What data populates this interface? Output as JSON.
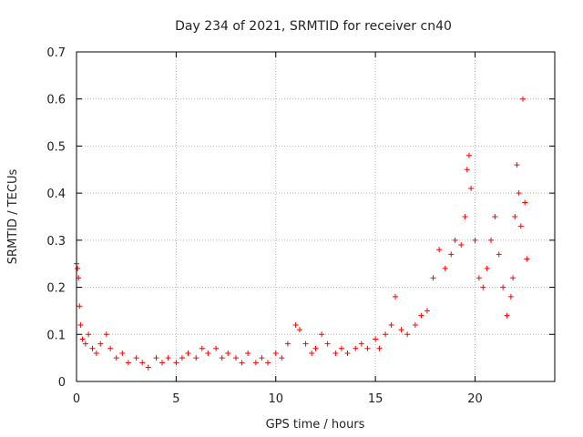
{
  "chart_data": {
    "type": "scatter",
    "title": "Day 234 of 2021, SRMTID for receiver cn40",
    "xlabel": "GPS time / hours",
    "ylabel": "SRMTID / TECUs",
    "xlim": [
      0,
      24
    ],
    "ylim": [
      0,
      0.7
    ],
    "x_ticks": [
      0,
      5,
      10,
      15,
      20
    ],
    "x_tick_labels": [
      "0",
      "5",
      "10",
      "15",
      "20"
    ],
    "y_ticks": [
      0,
      0.1,
      0.2,
      0.3,
      0.4,
      0.5,
      0.6,
      0.7
    ],
    "y_tick_labels": [
      "0",
      "0.1",
      "0.2",
      "0.3",
      "0.4",
      "0.5",
      "0.6",
      "0.7"
    ],
    "grid": true,
    "marker": "+",
    "color": "#ff0000",
    "series": [
      {
        "name": "SRMTID",
        "x": [
          0.0,
          0.05,
          0.1,
          0.15,
          0.2,
          0.3,
          0.45,
          0.6,
          0.8,
          1.0,
          1.2,
          1.5,
          1.7,
          2.0,
          2.3,
          2.6,
          3.0,
          3.3,
          3.6,
          4.0,
          4.3,
          4.6,
          5.0,
          5.3,
          5.6,
          6.0,
          6.3,
          6.6,
          7.0,
          7.3,
          7.6,
          8.0,
          8.3,
          8.6,
          9.0,
          9.3,
          9.6,
          10.0,
          10.3,
          10.6,
          11.0,
          11.2,
          11.5,
          11.8,
          12.0,
          12.3,
          12.6,
          13.0,
          13.3,
          13.6,
          14.0,
          14.3,
          14.6,
          15.0,
          15.2,
          15.5,
          15.8,
          16.0,
          16.3,
          16.6,
          17.0,
          17.3,
          17.6,
          17.9,
          18.2,
          18.5,
          18.8,
          19.0,
          19.3,
          19.5,
          19.6,
          19.7,
          19.8,
          20.0,
          20.2,
          20.4,
          20.6,
          20.8,
          21.0,
          21.2,
          21.4,
          21.6,
          21.8,
          21.9,
          22.0,
          22.1,
          22.2,
          22.3,
          22.4,
          22.5,
          22.6
        ],
        "y": [
          0.25,
          0.24,
          0.22,
          0.16,
          0.12,
          0.09,
          0.08,
          0.1,
          0.07,
          0.06,
          0.08,
          0.1,
          0.07,
          0.05,
          0.06,
          0.04,
          0.05,
          0.04,
          0.03,
          0.05,
          0.04,
          0.05,
          0.04,
          0.05,
          0.06,
          0.05,
          0.07,
          0.06,
          0.07,
          0.05,
          0.06,
          0.05,
          0.04,
          0.06,
          0.04,
          0.05,
          0.04,
          0.06,
          0.05,
          0.08,
          0.12,
          0.11,
          0.08,
          0.06,
          0.07,
          0.1,
          0.08,
          0.06,
          0.07,
          0.06,
          0.07,
          0.08,
          0.07,
          0.09,
          0.07,
          0.1,
          0.12,
          0.18,
          0.11,
          0.1,
          0.12,
          0.14,
          0.15,
          0.22,
          0.28,
          0.24,
          0.27,
          0.3,
          0.29,
          0.35,
          0.45,
          0.48,
          0.41,
          0.3,
          0.22,
          0.2,
          0.24,
          0.3,
          0.35,
          0.27,
          0.2,
          0.14,
          0.18,
          0.22,
          0.35,
          0.46,
          0.4,
          0.33,
          0.6,
          0.38,
          0.26
        ]
      }
    ]
  }
}
